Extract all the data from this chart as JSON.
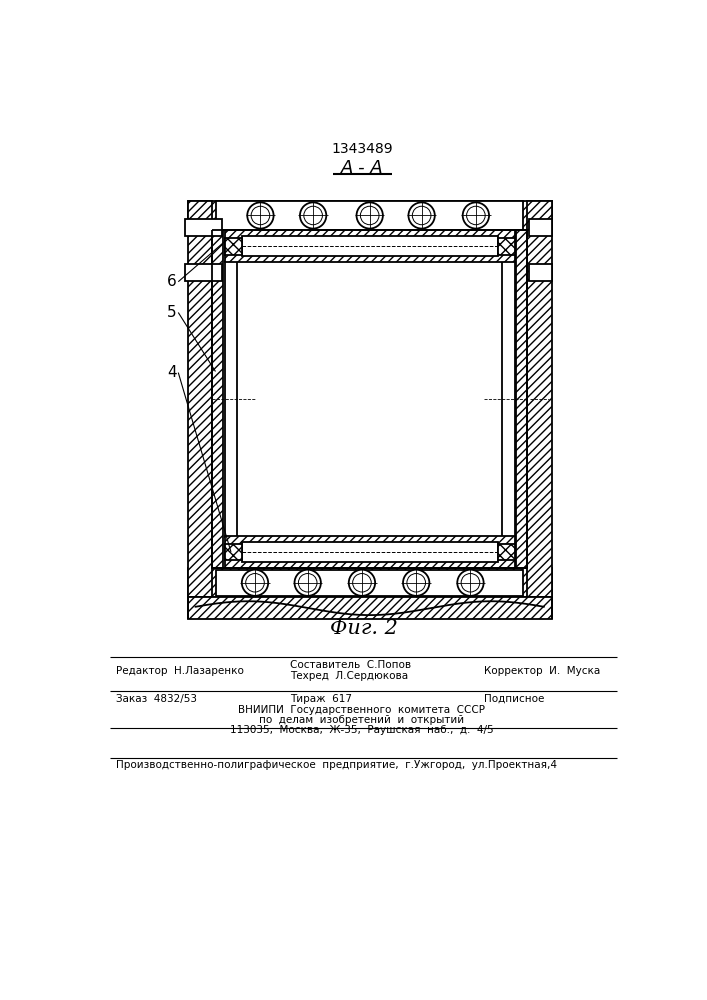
{
  "title_number": "1343489",
  "section_label": "A - A",
  "fig_label": "Фиг. 2",
  "footer": {
    "line1_left": "Редактор  Н.Лазаренко",
    "line1_center_top": "Составитель  С.Попов",
    "line1_center_bot": "Техред  Л.Сердюкова",
    "line1_right": "Корректор  И.  Муска",
    "line2_left": "Заказ  4832/53",
    "line2_center": "Тираж  617",
    "line2_right": "Подписное",
    "line3": "ВНИИПИ  Государственного  комитета  СССР",
    "line4": "по  делам  изобретений  и  открытий",
    "line5": "113035,  Москва,  Ж-35,  Раушская  наб.,  д.  4/5",
    "line6": "Производственно-полиграфическое  предприятие,  г.Ужгород,  ул.Проектная,4"
  },
  "bg_color": "#ffffff",
  "line_color": "#000000"
}
